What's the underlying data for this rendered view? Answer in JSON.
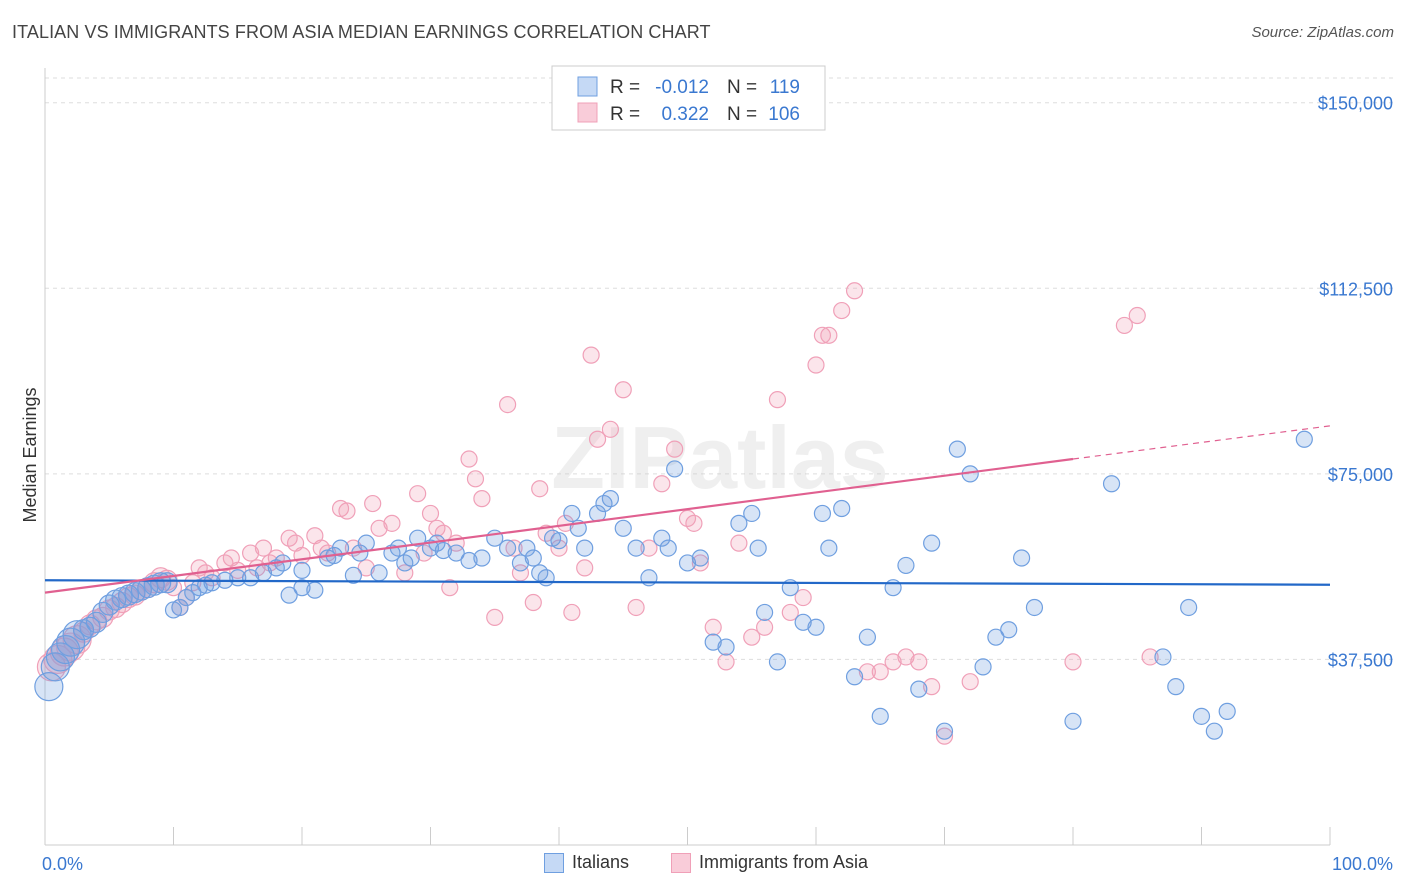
{
  "title": "ITALIAN VS IMMIGRANTS FROM ASIA MEDIAN EARNINGS CORRELATION CHART",
  "source": "Source: ZipAtlas.com",
  "watermark": "ZIPatlas",
  "chart_data": {
    "type": "scatter",
    "title": "ITALIAN VS IMMIGRANTS FROM ASIA MEDIAN EARNINGS CORRELATION CHART",
    "xlabel": "",
    "ylabel": "Median Earnings",
    "xlim": [
      0,
      100
    ],
    "ylim": [
      0,
      155000
    ],
    "x_tick_labels": [
      "0.0%",
      "100.0%"
    ],
    "y_ticks": [
      37500,
      75000,
      112500,
      150000
    ],
    "y_tick_labels": [
      "$37,500",
      "$75,000",
      "$112,500",
      "$150,000"
    ],
    "grid": true,
    "legend_position": "top-center",
    "series": [
      {
        "name": "Italians",
        "color": "#6f9fe0",
        "line_color": "#2268c8",
        "R": "-0.012",
        "N": "119",
        "trend": {
          "x": [
            0,
            100
          ],
          "y": [
            53500,
            52600
          ]
        },
        "points": [
          [
            0.3,
            32000
          ],
          [
            0.8,
            36000
          ],
          [
            1.2,
            38000
          ],
          [
            1.6,
            39500
          ],
          [
            2,
            41000
          ],
          [
            2.5,
            42500
          ],
          [
            3,
            43500
          ],
          [
            3.5,
            44000
          ],
          [
            4,
            45000
          ],
          [
            4.5,
            47000
          ],
          [
            5,
            48500
          ],
          [
            5.5,
            49500
          ],
          [
            6,
            50000
          ],
          [
            6.5,
            50500
          ],
          [
            7,
            51000
          ],
          [
            7.5,
            51500
          ],
          [
            8,
            52000
          ],
          [
            8.5,
            52500
          ],
          [
            9,
            53000
          ],
          [
            9.5,
            53000
          ],
          [
            10,
            47500
          ],
          [
            10.5,
            48000
          ],
          [
            11,
            50000
          ],
          [
            11.5,
            51000
          ],
          [
            12,
            52000
          ],
          [
            12.5,
            52500
          ],
          [
            13,
            53000
          ],
          [
            14,
            53500
          ],
          [
            15,
            54000
          ],
          [
            16,
            54000
          ],
          [
            17,
            55000
          ],
          [
            18,
            56000
          ],
          [
            18.5,
            57000
          ],
          [
            19,
            50500
          ],
          [
            20,
            55500
          ],
          [
            20,
            52000
          ],
          [
            21,
            51500
          ],
          [
            22,
            58000
          ],
          [
            22.5,
            58500
          ],
          [
            23,
            60000
          ],
          [
            24,
            54500
          ],
          [
            24.5,
            59000
          ],
          [
            25,
            61000
          ],
          [
            26,
            55000
          ],
          [
            27,
            59000
          ],
          [
            27.5,
            60000
          ],
          [
            28,
            57000
          ],
          [
            28.5,
            58000
          ],
          [
            29,
            62000
          ],
          [
            30,
            60000
          ],
          [
            30.5,
            61000
          ],
          [
            31,
            59500
          ],
          [
            32,
            59000
          ],
          [
            33,
            57500
          ],
          [
            34,
            58000
          ],
          [
            35,
            62000
          ],
          [
            36,
            60000
          ],
          [
            37,
            57000
          ],
          [
            37.5,
            60000
          ],
          [
            38,
            58000
          ],
          [
            38.5,
            55000
          ],
          [
            39,
            54000
          ],
          [
            39.5,
            62000
          ],
          [
            40,
            61500
          ],
          [
            41,
            67000
          ],
          [
            41.5,
            64000
          ],
          [
            42,
            60000
          ],
          [
            43,
            67000
          ],
          [
            43.5,
            69000
          ],
          [
            44,
            70000
          ],
          [
            45,
            64000
          ],
          [
            46,
            60000
          ],
          [
            47,
            54000
          ],
          [
            48,
            62000
          ],
          [
            48.5,
            60000
          ],
          [
            49,
            76000
          ],
          [
            50,
            57000
          ],
          [
            51,
            58000
          ],
          [
            52,
            41000
          ],
          [
            53,
            40000
          ],
          [
            54,
            65000
          ],
          [
            55,
            67000
          ],
          [
            55.5,
            60000
          ],
          [
            56,
            47000
          ],
          [
            57,
            37000
          ],
          [
            58,
            52000
          ],
          [
            59,
            45000
          ],
          [
            60,
            44000
          ],
          [
            60.5,
            67000
          ],
          [
            61,
            60000
          ],
          [
            62,
            68000
          ],
          [
            63,
            34000
          ],
          [
            64,
            42000
          ],
          [
            65,
            26000
          ],
          [
            66,
            52000
          ],
          [
            67,
            56500
          ],
          [
            68,
            31500
          ],
          [
            69,
            61000
          ],
          [
            70,
            23000
          ],
          [
            71,
            80000
          ],
          [
            72,
            75000
          ],
          [
            73,
            36000
          ],
          [
            74,
            42000
          ],
          [
            75,
            43500
          ],
          [
            76,
            58000
          ],
          [
            77,
            48000
          ],
          [
            80,
            25000
          ],
          [
            83,
            73000
          ],
          [
            87,
            38000
          ],
          [
            88,
            32000
          ],
          [
            89,
            48000
          ],
          [
            90,
            26000
          ],
          [
            91,
            23000
          ],
          [
            92,
            27000
          ],
          [
            98,
            82000
          ]
        ]
      },
      {
        "name": "Immigrants from Asia",
        "color": "#f0a0b8",
        "line_color": "#e06090",
        "R": "0.322",
        "N": "106",
        "trend": {
          "x": [
            0,
            80
          ],
          "y": [
            51000,
            78000
          ]
        },
        "trend_dashed": {
          "x": [
            80,
            100
          ],
          "y": [
            78000,
            84700
          ]
        },
        "points": [
          [
            0.5,
            36000
          ],
          [
            1,
            37500
          ],
          [
            1.5,
            39000
          ],
          [
            2,
            40000
          ],
          [
            2.5,
            41500
          ],
          [
            3,
            43000
          ],
          [
            3.5,
            44500
          ],
          [
            4,
            45500
          ],
          [
            4.5,
            46000
          ],
          [
            5,
            47500
          ],
          [
            5.5,
            48000
          ],
          [
            6,
            49000
          ],
          [
            6.5,
            50000
          ],
          [
            7,
            50500
          ],
          [
            7.5,
            51500
          ],
          [
            8,
            52000
          ],
          [
            8.5,
            53000
          ],
          [
            9,
            54000
          ],
          [
            9.5,
            53500
          ],
          [
            10,
            52000
          ],
          [
            10.5,
            48000
          ],
          [
            11,
            50000
          ],
          [
            11.5,
            53000
          ],
          [
            12,
            56000
          ],
          [
            12.5,
            55000
          ],
          [
            13,
            54000
          ],
          [
            14,
            57000
          ],
          [
            14.5,
            58000
          ],
          [
            15,
            55500
          ],
          [
            16,
            59000
          ],
          [
            16.5,
            56000
          ],
          [
            17,
            60000
          ],
          [
            17.5,
            57000
          ],
          [
            18,
            58000
          ],
          [
            19,
            62000
          ],
          [
            19.5,
            61000
          ],
          [
            20,
            58500
          ],
          [
            21,
            62500
          ],
          [
            21.5,
            60000
          ],
          [
            22,
            59000
          ],
          [
            23,
            68000
          ],
          [
            23.5,
            67500
          ],
          [
            24,
            60000
          ],
          [
            25,
            56000
          ],
          [
            25.5,
            69000
          ],
          [
            26,
            64000
          ],
          [
            27,
            65000
          ],
          [
            28,
            55000
          ],
          [
            29,
            71000
          ],
          [
            29.5,
            59000
          ],
          [
            30,
            67000
          ],
          [
            30.5,
            64000
          ],
          [
            31,
            63000
          ],
          [
            31.5,
            52000
          ],
          [
            32,
            61000
          ],
          [
            33,
            78000
          ],
          [
            33.5,
            74000
          ],
          [
            34,
            70000
          ],
          [
            35,
            46000
          ],
          [
            36,
            89000
          ],
          [
            36.5,
            60000
          ],
          [
            37,
            55000
          ],
          [
            38,
            49000
          ],
          [
            38.5,
            72000
          ],
          [
            39,
            63000
          ],
          [
            40,
            60000
          ],
          [
            40.5,
            65000
          ],
          [
            41,
            47000
          ],
          [
            42,
            56000
          ],
          [
            42.5,
            99000
          ],
          [
            43,
            82000
          ],
          [
            44,
            84000
          ],
          [
            45,
            92000
          ],
          [
            46,
            48000
          ],
          [
            47,
            60000
          ],
          [
            48,
            73000
          ],
          [
            49,
            80000
          ],
          [
            50,
            66000
          ],
          [
            50.5,
            65000
          ],
          [
            51,
            57000
          ],
          [
            52,
            44000
          ],
          [
            53,
            37000
          ],
          [
            54,
            61000
          ],
          [
            55,
            42000
          ],
          [
            56,
            44000
          ],
          [
            57,
            90000
          ],
          [
            58,
            47000
          ],
          [
            59,
            50000
          ],
          [
            60,
            97000
          ],
          [
            60.5,
            103000
          ],
          [
            61,
            103000
          ],
          [
            62,
            108000
          ],
          [
            63,
            112000
          ],
          [
            64,
            35000
          ],
          [
            65,
            35000
          ],
          [
            66,
            37000
          ],
          [
            67,
            38000
          ],
          [
            68,
            37000
          ],
          [
            69,
            32000
          ],
          [
            70,
            22000
          ],
          [
            72,
            33000
          ],
          [
            80,
            37000
          ],
          [
            84,
            105000
          ],
          [
            85,
            107000
          ],
          [
            86,
            38000
          ]
        ]
      }
    ]
  }
}
